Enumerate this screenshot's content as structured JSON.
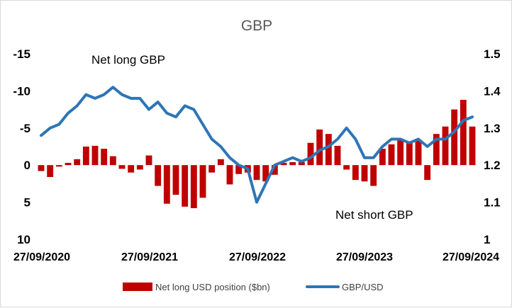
{
  "chart_data": {
    "type": "bar+line",
    "title": "GBP",
    "x_ticks": [
      "27/09/2020",
      "27/09/2021",
      "27/09/2022",
      "27/09/2023",
      "27/09/2024"
    ],
    "left_axis": {
      "ticks": [
        "-15",
        "-10",
        "-5",
        "0",
        "5",
        "10"
      ],
      "ylim": [
        -15,
        10
      ],
      "inverted": true
    },
    "right_axis": {
      "ticks": [
        "1.5",
        "1.4",
        "1.3",
        "1.2",
        "1.1",
        "1"
      ],
      "ylim": [
        1.0,
        1.5
      ]
    },
    "annotations": [
      "Net long GBP",
      "Net short GBP"
    ],
    "series": [
      {
        "name": "Net long USD position ($bn)",
        "type": "bar",
        "axis": "left",
        "color": "#c00000",
        "x": [
          "2020-09",
          "2020-10",
          "2020-11",
          "2020-12",
          "2021-01",
          "2021-02",
          "2021-03",
          "2021-04",
          "2021-05",
          "2021-06",
          "2021-07",
          "2021-08",
          "2021-09",
          "2021-10",
          "2021-11",
          "2021-12",
          "2022-01",
          "2022-02",
          "2022-03",
          "2022-04",
          "2022-05",
          "2022-06",
          "2022-07",
          "2022-08",
          "2022-09",
          "2022-10",
          "2022-11",
          "2022-12",
          "2023-01",
          "2023-02",
          "2023-03",
          "2023-04",
          "2023-05",
          "2023-06",
          "2023-07",
          "2023-08",
          "2023-09",
          "2023-10",
          "2023-11",
          "2023-12",
          "2024-01",
          "2024-02",
          "2024-03",
          "2024-04",
          "2024-05",
          "2024-06",
          "2024-07",
          "2024-08",
          "2024-09"
        ],
        "values": [
          0.8,
          1.6,
          0.2,
          -0.3,
          -0.8,
          -2.5,
          -2.6,
          -2.2,
          -1.2,
          0.5,
          1.0,
          0.6,
          -1.3,
          2.8,
          5.2,
          4.0,
          5.6,
          5.8,
          4.4,
          1.0,
          -0.8,
          2.6,
          1.2,
          1.0,
          2.0,
          2.2,
          1.3,
          -0.3,
          -0.4,
          -0.4,
          -3.0,
          -4.8,
          -4.2,
          -2.6,
          0.6,
          2.0,
          2.2,
          2.8,
          -2.2,
          -2.8,
          -3.4,
          -3.0,
          -3.4,
          2.0,
          -4.2,
          -5.2,
          -7.5,
          -8.8,
          -5.2
        ]
      },
      {
        "name": "GBP/USD",
        "type": "line",
        "axis": "right",
        "color": "#2e75b6",
        "x": [
          "2020-09",
          "2020-10",
          "2020-11",
          "2020-12",
          "2021-01",
          "2021-02",
          "2021-03",
          "2021-04",
          "2021-05",
          "2021-06",
          "2021-07",
          "2021-08",
          "2021-09",
          "2021-10",
          "2021-11",
          "2021-12",
          "2022-01",
          "2022-02",
          "2022-03",
          "2022-04",
          "2022-05",
          "2022-06",
          "2022-07",
          "2022-08",
          "2022-09",
          "2022-10",
          "2022-11",
          "2022-12",
          "2023-01",
          "2023-02",
          "2023-03",
          "2023-04",
          "2023-05",
          "2023-06",
          "2023-07",
          "2023-08",
          "2023-09",
          "2023-10",
          "2023-11",
          "2023-12",
          "2024-01",
          "2024-02",
          "2024-03",
          "2024-04",
          "2024-05",
          "2024-06",
          "2024-07",
          "2024-08",
          "2024-09"
        ],
        "values": [
          1.28,
          1.3,
          1.31,
          1.34,
          1.36,
          1.39,
          1.38,
          1.39,
          1.41,
          1.39,
          1.38,
          1.38,
          1.35,
          1.37,
          1.34,
          1.33,
          1.36,
          1.35,
          1.31,
          1.27,
          1.25,
          1.22,
          1.2,
          1.19,
          1.1,
          1.15,
          1.2,
          1.21,
          1.22,
          1.21,
          1.22,
          1.24,
          1.25,
          1.27,
          1.3,
          1.27,
          1.22,
          1.22,
          1.25,
          1.27,
          1.27,
          1.26,
          1.27,
          1.25,
          1.27,
          1.27,
          1.29,
          1.32,
          1.33
        ]
      }
    ],
    "legend": {
      "placement": "bottom"
    }
  }
}
